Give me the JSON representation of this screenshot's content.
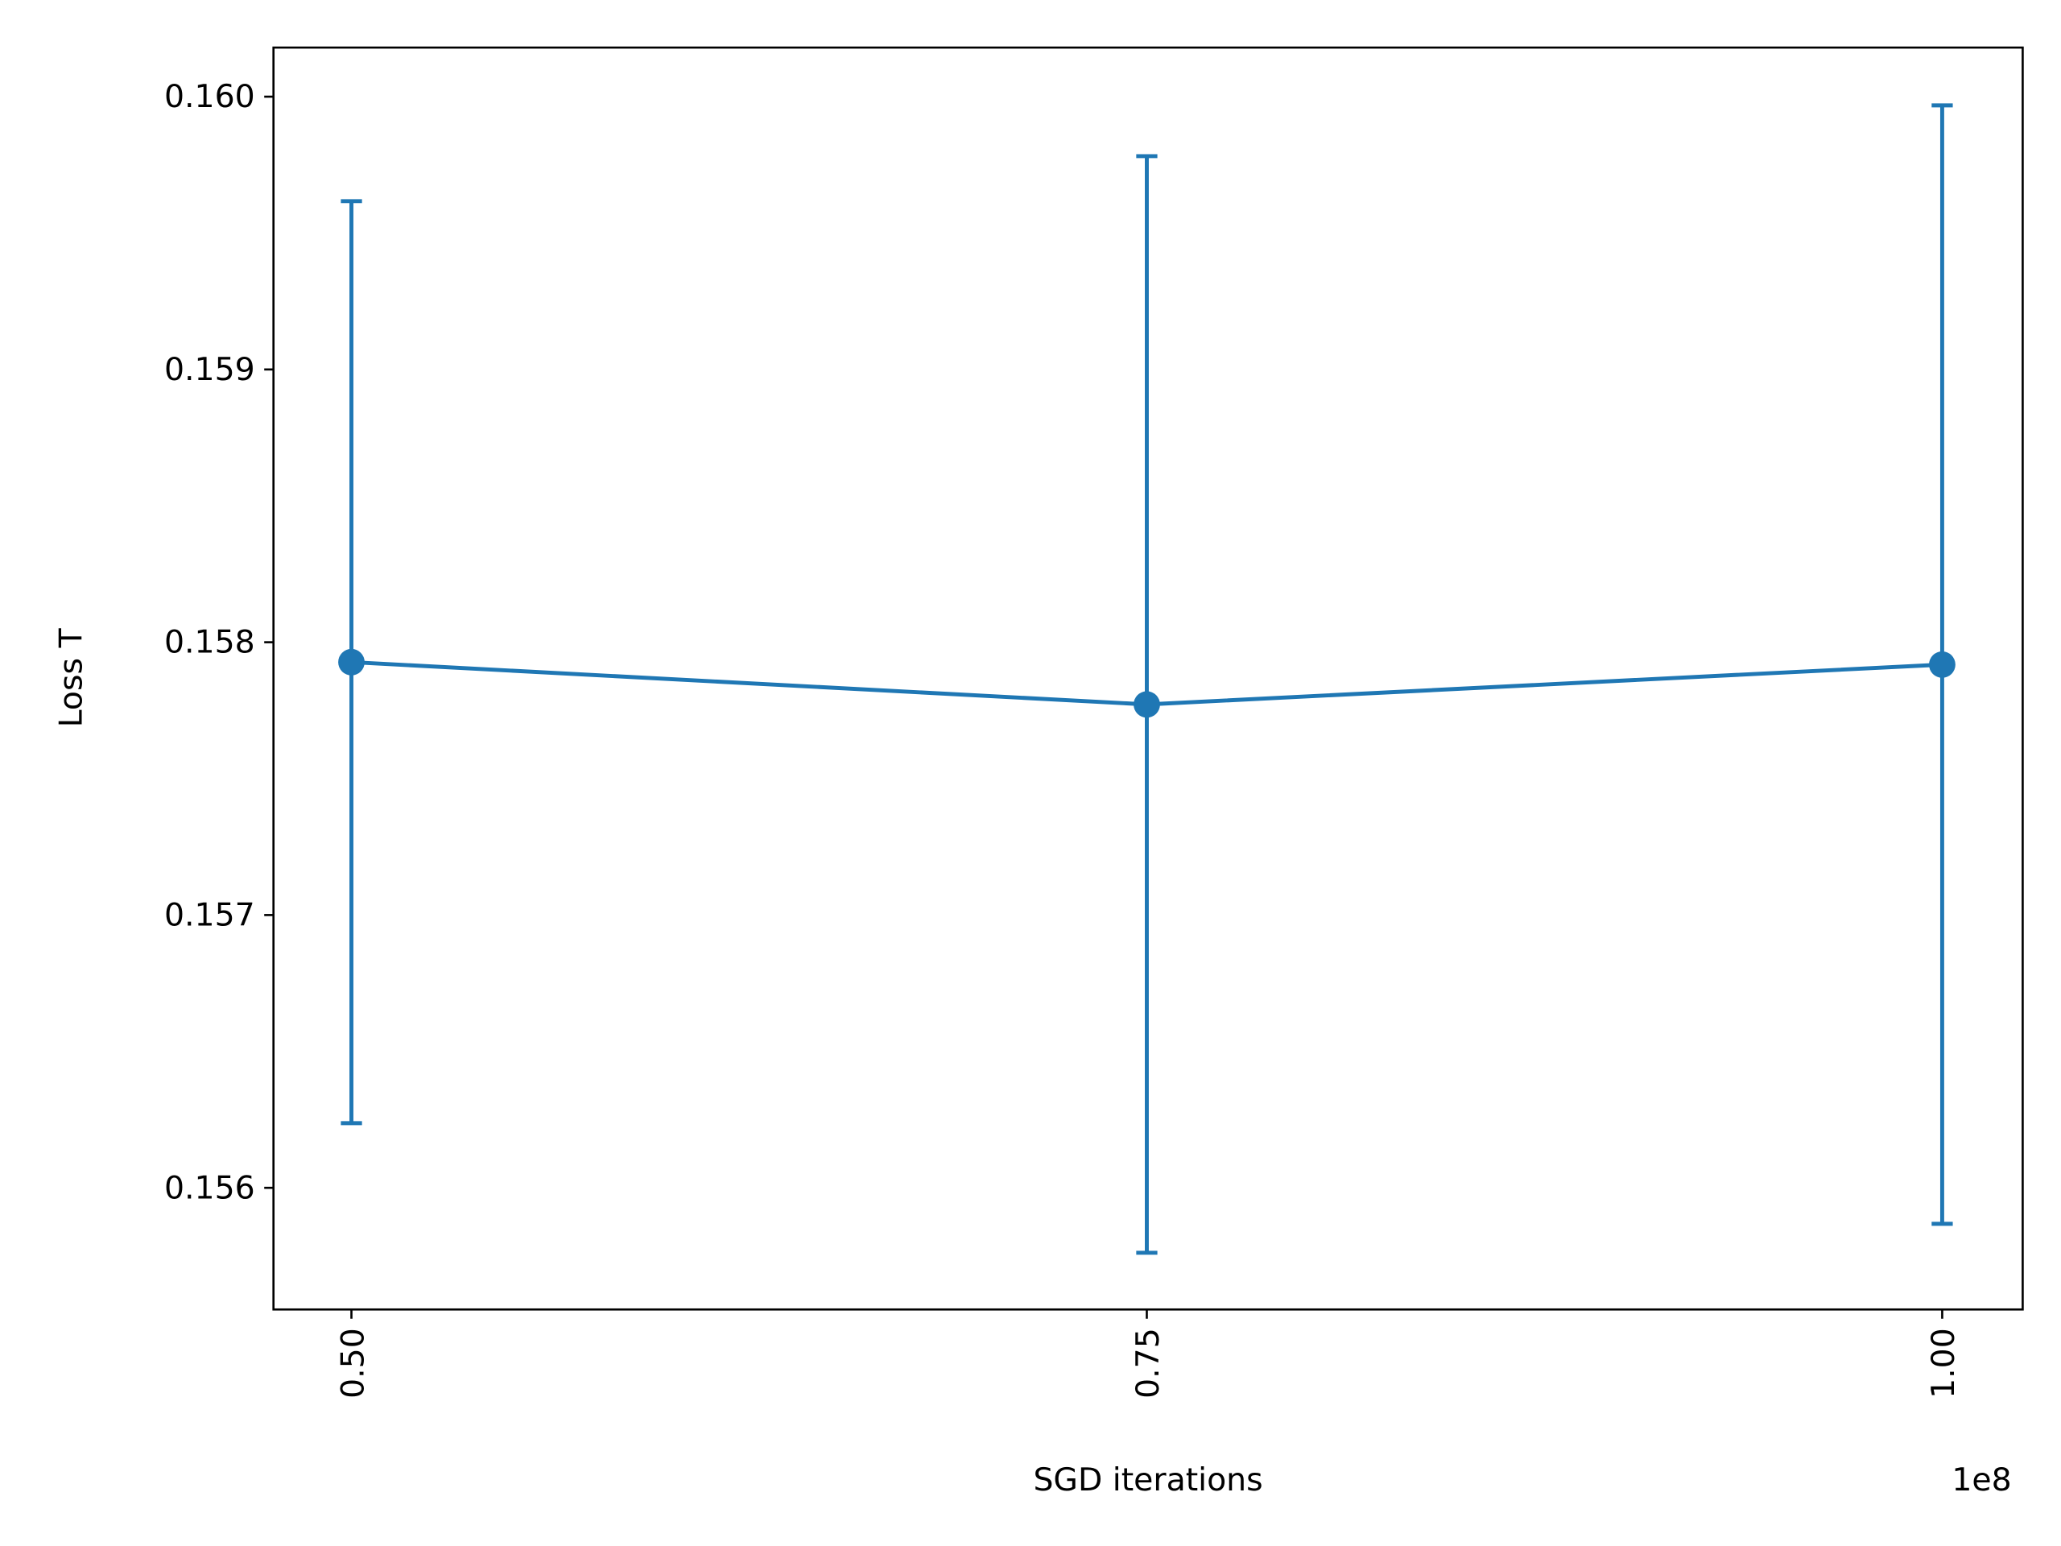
{
  "chart_data": {
    "type": "errorbar-line",
    "xlabel": "SGD iterations",
    "ylabel": "Loss T",
    "x_offset": "1e8",
    "x": [
      50000000,
      75000000,
      100000000
    ],
    "series": [
      {
        "color": "#1f77b4",
        "values": [
          0.157927,
          0.157772,
          0.157918
        ],
        "errors": [
          0.00169,
          0.00201,
          0.00205
        ]
      }
    ],
    "xlim": [
      47550000,
      102530000
    ],
    "xticks": [
      {
        "value": 50000000,
        "label": "0.50"
      },
      {
        "value": 75000000,
        "label": "0.75"
      },
      {
        "value": 100000000,
        "label": "1.00"
      }
    ],
    "ylim": [
      0.155554,
      0.16018
    ],
    "yticks": [
      0.156,
      0.157,
      0.158,
      0.159,
      {
        "value": 0.16,
        "label": "0.160"
      }
    ],
    "grid": false
  }
}
